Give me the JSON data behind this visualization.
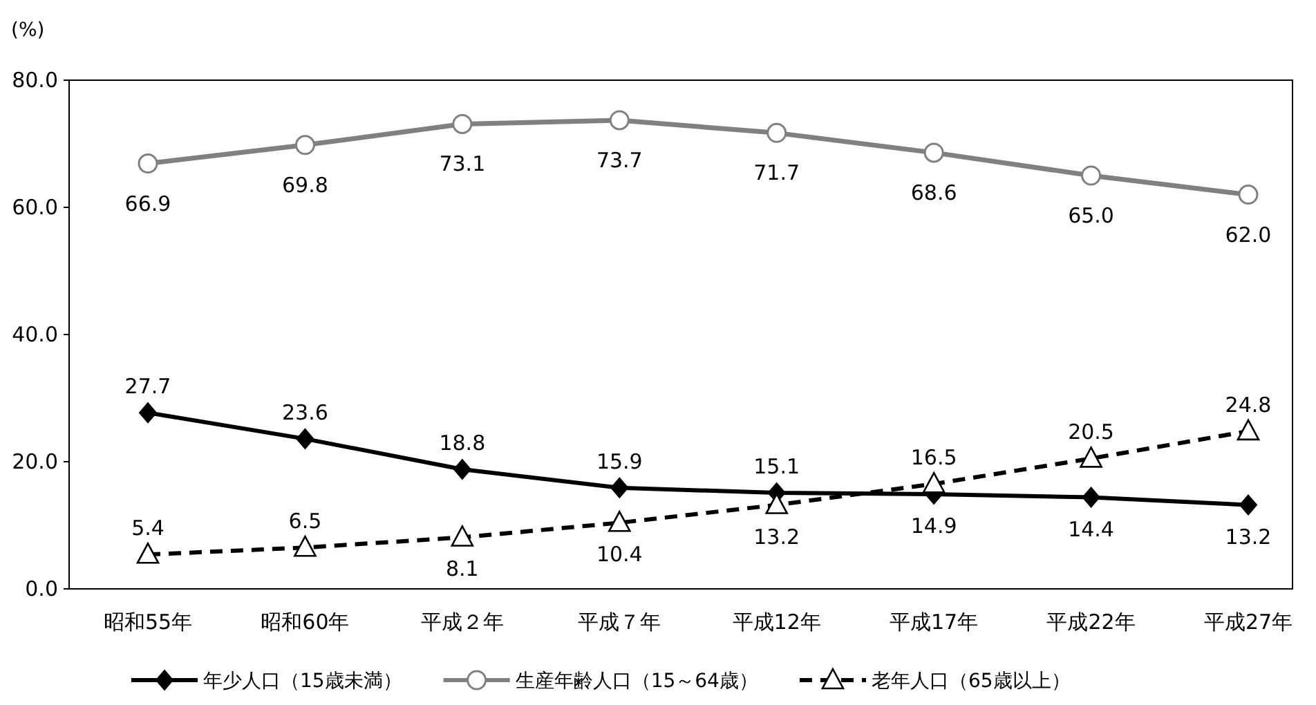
{
  "chart_data": {
    "type": "line",
    "ylabel": "(%)",
    "categories": [
      "昭和55年",
      "昭和60年",
      "平成２年",
      "平成７年",
      "平成12年",
      "平成17年",
      "平成22年",
      "平成27年"
    ],
    "series": [
      {
        "name": "年少人口（15歳未満）",
        "color": "#000000",
        "marker": "diamond",
        "line_style": "solid",
        "values": [
          27.7,
          23.6,
          18.8,
          15.9,
          15.1,
          14.9,
          14.4,
          13.2
        ],
        "value_labels": [
          "27.7",
          "23.6",
          "18.8",
          "15.9",
          "15.1",
          "14.9",
          "14.4",
          "13.2"
        ]
      },
      {
        "name": "生産年齢人口（15～64歳）",
        "color": "#808080",
        "marker": "circle",
        "line_style": "solid",
        "values": [
          66.9,
          69.8,
          73.1,
          73.7,
          71.7,
          68.6,
          65.0,
          62.0
        ],
        "value_labels": [
          "66.9",
          "69.8",
          "73.1",
          "73.7",
          "71.7",
          "68.6",
          "65.0",
          "62.0"
        ]
      },
      {
        "name": "老年人口（65歳以上）",
        "color": "#000000",
        "marker": "triangle",
        "line_style": "dashed",
        "values": [
          5.4,
          6.5,
          8.1,
          10.4,
          13.2,
          16.5,
          20.5,
          24.8
        ],
        "value_labels": [
          "5.4",
          "6.5",
          "8.1",
          "10.4",
          "13.2",
          "16.5",
          "20.5",
          "24.8"
        ]
      }
    ],
    "ylim": [
      0,
      80
    ],
    "yticks": [
      {
        "value": 0,
        "label": "0.0"
      },
      {
        "value": 20,
        "label": "20.0"
      },
      {
        "value": 40,
        "label": "40.0"
      },
      {
        "value": 60,
        "label": "60.0"
      },
      {
        "value": 80,
        "label": "80.0"
      }
    ],
    "legend": "bottom"
  }
}
